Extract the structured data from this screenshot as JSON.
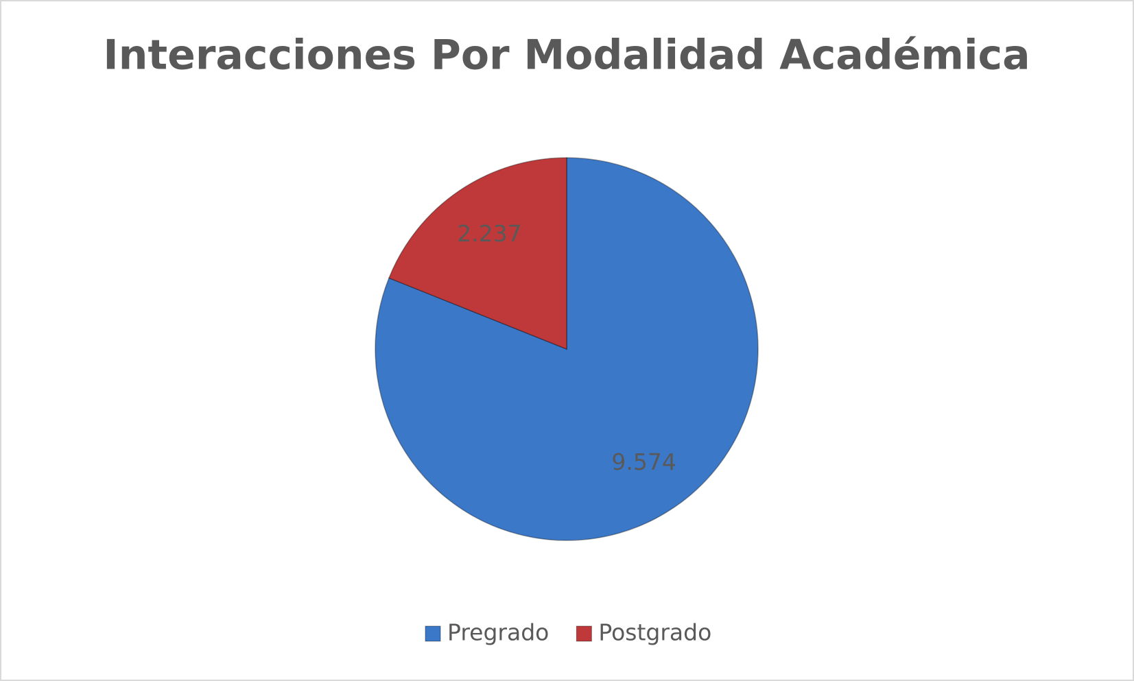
{
  "chart_data": {
    "type": "pie",
    "title": "Interacciones Por Modalidad Académica",
    "categories": [
      "Pregrado",
      "Postgrado"
    ],
    "values": [
      9574,
      2237
    ],
    "value_labels": [
      "9.574",
      "2.237"
    ],
    "colors": [
      "#3b78c8",
      "#c0393a"
    ],
    "legend": "bottom"
  }
}
